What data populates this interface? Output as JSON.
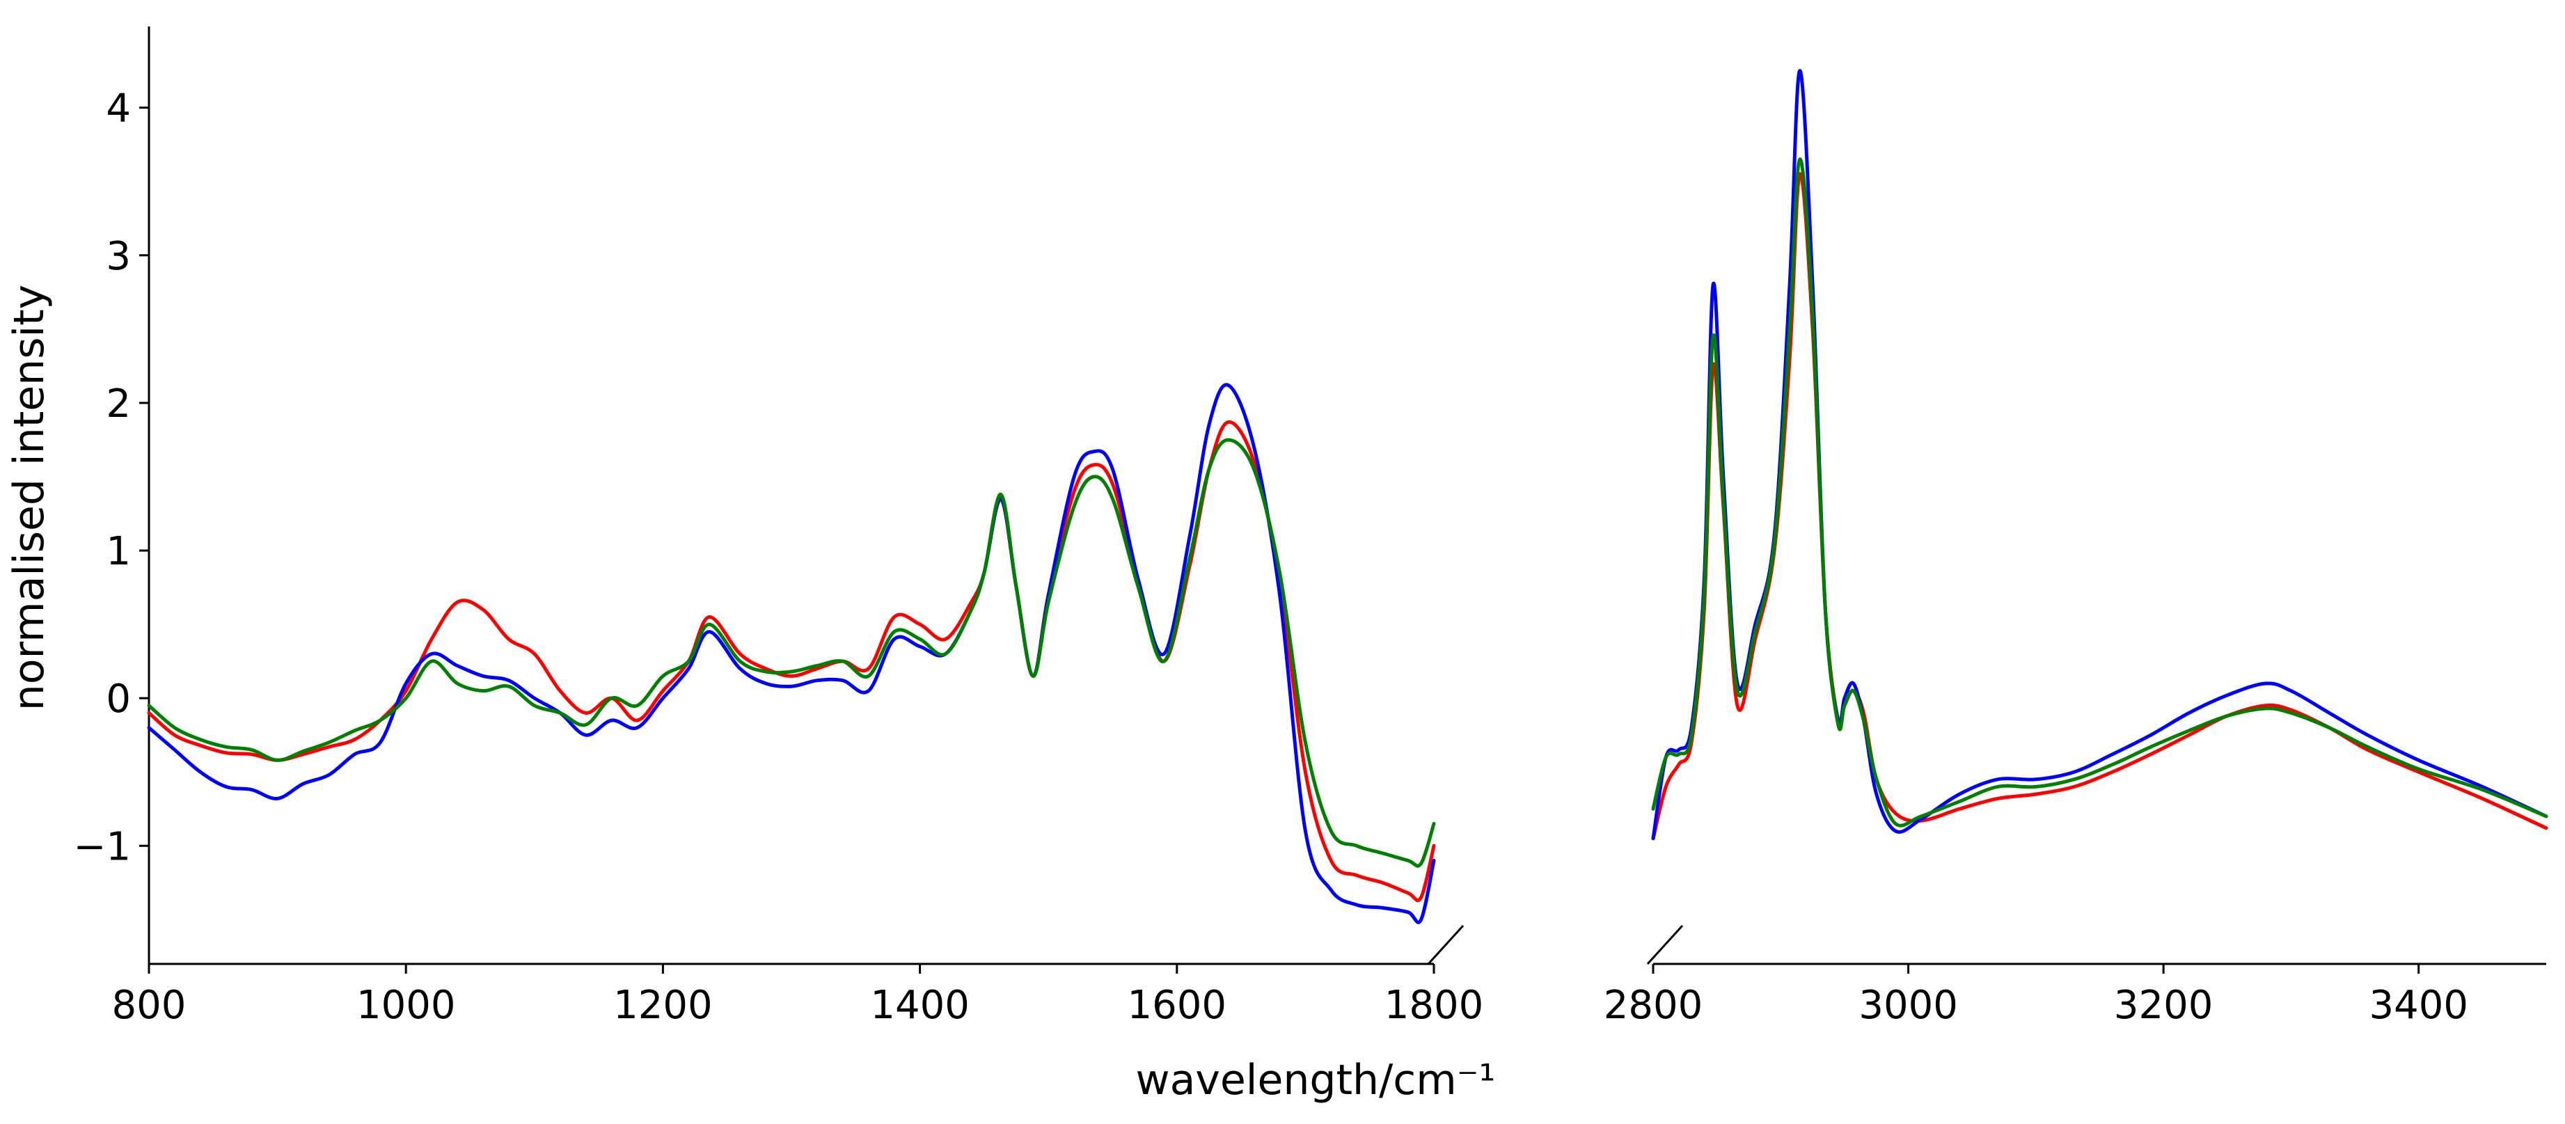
{
  "chart_data": {
    "type": "line",
    "title": "",
    "xlabel": "wavelength/cm⁻¹",
    "ylabel": "normalised intensity",
    "grid": false,
    "legend": "none",
    "y_ticks": [
      "−1",
      "0",
      "1",
      "2",
      "3",
      "4"
    ],
    "y_tick_values": [
      -1,
      0,
      1,
      2,
      3,
      4
    ],
    "ylim": [
      -1.8,
      4.55
    ],
    "panels": [
      {
        "xlim": [
          800,
          1800
        ],
        "x_ticks": [
          "800",
          "1000",
          "1200",
          "1400",
          "1600",
          "1800"
        ],
        "x_tick_values": [
          800,
          1000,
          1200,
          1400,
          1600,
          1800
        ]
      },
      {
        "xlim": [
          2800,
          3500
        ],
        "x_ticks": [
          "2800",
          "3000",
          "3200",
          "3400"
        ],
        "x_tick_values": [
          2800,
          3000,
          3200,
          3400
        ]
      }
    ],
    "x": [
      800,
      820,
      840,
      860,
      880,
      900,
      920,
      940,
      960,
      980,
      1000,
      1020,
      1040,
      1060,
      1080,
      1100,
      1120,
      1140,
      1160,
      1180,
      1200,
      1220,
      1236,
      1260,
      1280,
      1300,
      1320,
      1340,
      1360,
      1380,
      1400,
      1420,
      1440,
      1450,
      1463,
      1475,
      1488,
      1500,
      1520,
      1535,
      1550,
      1570,
      1590,
      1610,
      1625,
      1640,
      1660,
      1680,
      1700,
      1720,
      1740,
      1760,
      1780,
      1790,
      1800,
      2800,
      2810,
      2820,
      2830,
      2840,
      2847,
      2855,
      2866,
      2880,
      2895,
      2907,
      2915,
      2925,
      2935,
      2945,
      2950,
      2957,
      2965,
      2975,
      2990,
      3010,
      3040,
      3070,
      3100,
      3130,
      3160,
      3190,
      3220,
      3250,
      3280,
      3300,
      3330,
      3360,
      3400,
      3450,
      3500
    ],
    "series": [
      {
        "color": "#ff0000",
        "values": [
          -0.1,
          -0.25,
          -0.32,
          -0.37,
          -0.38,
          -0.42,
          -0.38,
          -0.33,
          -0.28,
          -0.15,
          0.05,
          0.4,
          0.65,
          0.6,
          0.4,
          0.3,
          0.05,
          -0.1,
          0.0,
          -0.15,
          0.05,
          0.25,
          0.55,
          0.3,
          0.2,
          0.15,
          0.2,
          0.25,
          0.2,
          0.55,
          0.5,
          0.4,
          0.65,
          0.85,
          1.35,
          0.75,
          0.15,
          0.7,
          1.4,
          1.58,
          1.45,
          0.8,
          0.25,
          0.9,
          1.55,
          1.87,
          1.6,
          0.8,
          -0.5,
          -1.1,
          -1.2,
          -1.25,
          -1.32,
          -1.35,
          -1.0,
          -0.95,
          -0.6,
          -0.45,
          -0.3,
          0.6,
          2.25,
          1.3,
          -0.05,
          0.4,
          1.0,
          2.3,
          3.55,
          2.5,
          0.6,
          -0.15,
          -0.05,
          0.05,
          -0.1,
          -0.55,
          -0.78,
          -0.83,
          -0.75,
          -0.68,
          -0.65,
          -0.6,
          -0.5,
          -0.38,
          -0.25,
          -0.12,
          -0.05,
          -0.08,
          -0.2,
          -0.35,
          -0.5,
          -0.68,
          -0.88
        ]
      },
      {
        "color": "#0000ff",
        "values": [
          -0.2,
          -0.35,
          -0.5,
          -0.6,
          -0.62,
          -0.68,
          -0.58,
          -0.52,
          -0.38,
          -0.3,
          0.1,
          0.3,
          0.22,
          0.15,
          0.12,
          0.0,
          -0.1,
          -0.25,
          -0.15,
          -0.2,
          0.0,
          0.2,
          0.45,
          0.2,
          0.1,
          0.08,
          0.12,
          0.12,
          0.05,
          0.4,
          0.35,
          0.3,
          0.6,
          0.85,
          1.35,
          0.75,
          0.15,
          0.7,
          1.5,
          1.67,
          1.55,
          0.8,
          0.3,
          1.1,
          1.85,
          2.12,
          1.7,
          0.7,
          -0.9,
          -1.3,
          -1.4,
          -1.42,
          -1.45,
          -1.5,
          -1.1,
          -0.95,
          -0.4,
          -0.35,
          -0.2,
          0.8,
          2.8,
          1.5,
          0.1,
          0.5,
          1.1,
          2.8,
          4.25,
          2.8,
          0.6,
          -0.15,
          0.0,
          0.1,
          -0.15,
          -0.65,
          -0.9,
          -0.82,
          -0.65,
          -0.55,
          -0.55,
          -0.5,
          -0.38,
          -0.25,
          -0.1,
          0.02,
          0.1,
          0.05,
          -0.1,
          -0.25,
          -0.42,
          -0.6,
          -0.8
        ]
      },
      {
        "color": "#008000",
        "values": [
          -0.05,
          -0.2,
          -0.28,
          -0.33,
          -0.35,
          -0.42,
          -0.36,
          -0.3,
          -0.22,
          -0.15,
          0.0,
          0.25,
          0.1,
          0.05,
          0.08,
          -0.05,
          -0.1,
          -0.18,
          0.0,
          -0.05,
          0.15,
          0.25,
          0.5,
          0.25,
          0.18,
          0.18,
          0.22,
          0.25,
          0.15,
          0.45,
          0.4,
          0.3,
          0.6,
          0.85,
          1.38,
          0.75,
          0.15,
          0.65,
          1.3,
          1.5,
          1.35,
          0.75,
          0.25,
          0.95,
          1.55,
          1.75,
          1.55,
          0.85,
          -0.3,
          -0.9,
          -1.0,
          -1.05,
          -1.1,
          -1.12,
          -0.85,
          -0.75,
          -0.4,
          -0.38,
          -0.25,
          0.7,
          2.45,
          1.35,
          0.05,
          0.45,
          1.05,
          2.5,
          3.65,
          2.6,
          0.6,
          -0.18,
          -0.05,
          0.05,
          -0.15,
          -0.55,
          -0.85,
          -0.8,
          -0.7,
          -0.6,
          -0.6,
          -0.55,
          -0.45,
          -0.33,
          -0.22,
          -0.12,
          -0.07,
          -0.1,
          -0.2,
          -0.33,
          -0.48,
          -0.62,
          -0.8
        ]
      }
    ]
  }
}
